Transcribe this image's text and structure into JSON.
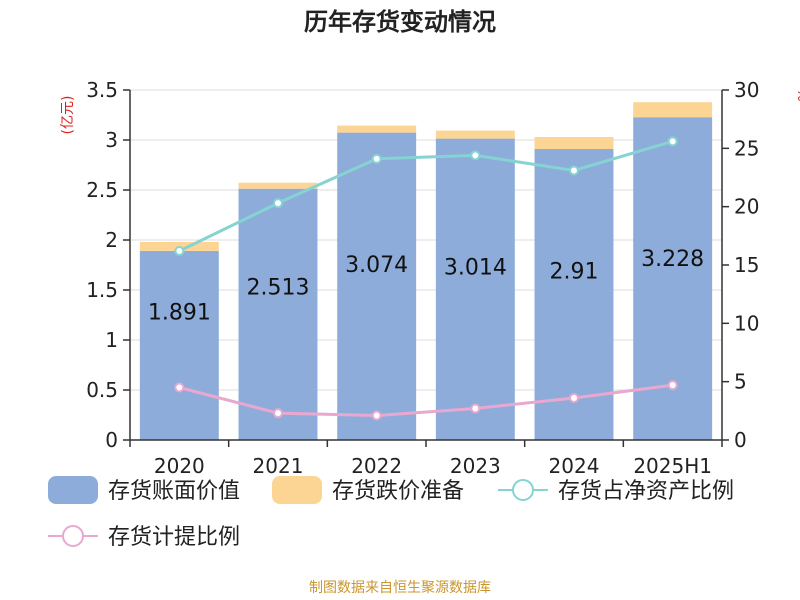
{
  "chart_data": {
    "type": "bar",
    "title": "历年存货变动情况",
    "categories": [
      "2020",
      "2021",
      "2022",
      "2023",
      "2024",
      "2025H1"
    ],
    "left_axis": {
      "unit_label": "(亿元)",
      "ylim": [
        0,
        3.5
      ],
      "ticks": [
        "0",
        "0.5",
        "1",
        "1.5",
        "2",
        "2.5",
        "3",
        "3.5"
      ]
    },
    "right_axis": {
      "unit_label": "%",
      "ylim": [
        0,
        30
      ],
      "ticks": [
        "0",
        "5",
        "10",
        "15",
        "20",
        "25",
        "30"
      ]
    },
    "series": [
      {
        "name": "存货账面价值",
        "kind": "bar",
        "axis": "left",
        "color": "#8eacda",
        "values": [
          1.891,
          2.513,
          3.074,
          3.014,
          2.91,
          3.228
        ],
        "labels": [
          "1.891",
          "2.513",
          "3.074",
          "3.014",
          "2.91",
          "3.228"
        ]
      },
      {
        "name": "存货跌价准备",
        "kind": "bar-stacked",
        "axis": "left",
        "color": "#fcd595",
        "values": [
          0.09,
          0.06,
          0.07,
          0.08,
          0.12,
          0.15
        ]
      },
      {
        "name": "存货占净资产比例",
        "kind": "line",
        "axis": "right",
        "color": "#86d3d3",
        "values": [
          16.2,
          20.3,
          24.1,
          24.4,
          23.1,
          25.6
        ]
      },
      {
        "name": "存货计提比例",
        "kind": "line",
        "axis": "right",
        "color": "#e8a8d0",
        "values": [
          4.5,
          2.3,
          2.1,
          2.7,
          3.6,
          4.7
        ]
      }
    ],
    "grid": true,
    "legend_position": "bottom"
  },
  "footer": {
    "source": "制图数据来自恒生聚源数据库"
  }
}
